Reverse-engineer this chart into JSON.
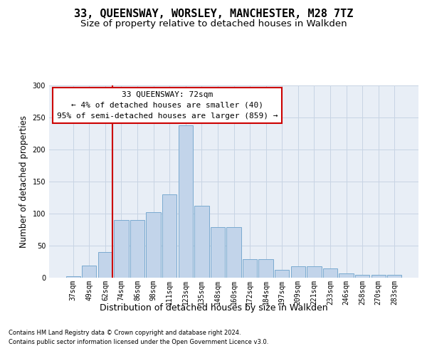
{
  "title": "33, QUEENSWAY, WORSLEY, MANCHESTER, M28 7TZ",
  "subtitle": "Size of property relative to detached houses in Walkden",
  "xlabel": "Distribution of detached houses by size in Walkden",
  "ylabel": "Number of detached properties",
  "footnote1": "Contains HM Land Registry data © Crown copyright and database right 2024.",
  "footnote2": "Contains public sector information licensed under the Open Government Licence v3.0.",
  "bar_color": "#c2d4ea",
  "bar_edge_color": "#7aaad0",
  "categories": [
    "37sqm",
    "49sqm",
    "62sqm",
    "74sqm",
    "86sqm",
    "98sqm",
    "111sqm",
    "123sqm",
    "135sqm",
    "148sqm",
    "160sqm",
    "172sqm",
    "184sqm",
    "197sqm",
    "209sqm",
    "221sqm",
    "233sqm",
    "246sqm",
    "258sqm",
    "270sqm",
    "283sqm"
  ],
  "values": [
    2,
    19,
    40,
    90,
    90,
    102,
    130,
    238,
    112,
    79,
    79,
    29,
    29,
    12,
    18,
    18,
    15,
    7,
    4,
    5,
    5
  ],
  "vline_color": "#cc0000",
  "vline_x_idx": 2.5,
  "annotation_line1": "33 QUEENSWAY: 72sqm",
  "annotation_line2": "← 4% of detached houses are smaller (40)",
  "annotation_line3": "95% of semi-detached houses are larger (859) →",
  "annotation_box_facecolor": "#ffffff",
  "annotation_box_edgecolor": "#cc0000",
  "ylim": [
    0,
    300
  ],
  "yticks": [
    0,
    50,
    100,
    150,
    200,
    250,
    300
  ],
  "grid_color": "#c8d4e4",
  "bg_color": "#e8eef6",
  "title_fontsize": 11,
  "subtitle_fontsize": 9.5,
  "ylabel_fontsize": 8.5,
  "xlabel_fontsize": 9,
  "tick_fontsize": 7,
  "annotation_fontsize": 8,
  "footnote_fontsize": 6
}
